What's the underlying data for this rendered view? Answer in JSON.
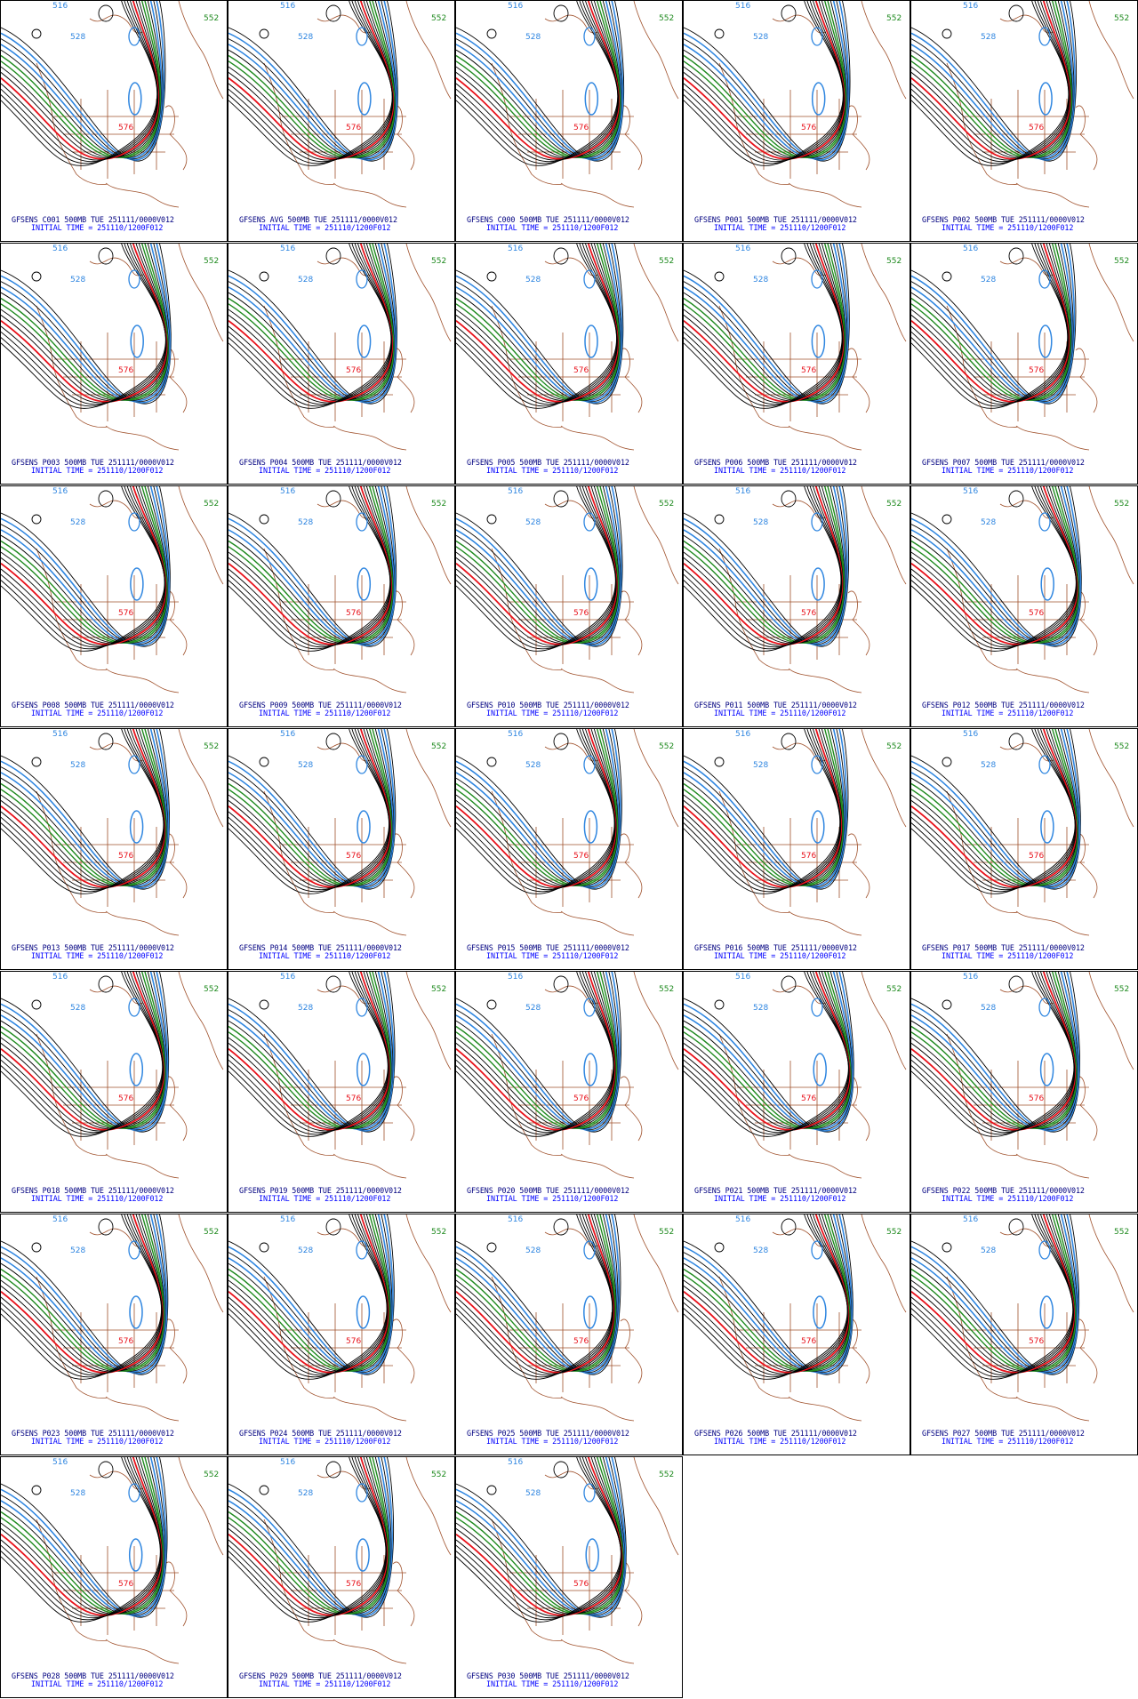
{
  "colors": {
    "contour": "#000000",
    "contour_552": "#1f8a1f",
    "contour_576": "#e8121b",
    "contour_516_528": "#2f86e0",
    "boundaries": "#a0522d",
    "caption_line1": "#000080",
    "caption_line2": "#0000ff"
  },
  "contour_labels": [
    "552",
    "516",
    "528",
    "576"
  ],
  "initial_time_line": "INITIAL TIME = 251110/1200F012",
  "panels": [
    {
      "caption": "GFSENS C001 500MB TUE 251111/0000V012"
    },
    {
      "caption": "GFSENS AVG 500MB TUE 251111/0000V012"
    },
    {
      "caption": "GFSENS C000 500MB TUE 251111/0000V012"
    },
    {
      "caption": "GFSENS P001 500MB TUE 251111/0000V012"
    },
    {
      "caption": "GFSENS P002 500MB TUE 251111/0000V012"
    },
    {
      "caption": "GFSENS P003 500MB TUE 251111/0000V012"
    },
    {
      "caption": "GFSENS P004 500MB TUE 251111/0000V012"
    },
    {
      "caption": "GFSENS P005 500MB TUE 251111/0000V012"
    },
    {
      "caption": "GFSENS P006 500MB TUE 251111/0000V012"
    },
    {
      "caption": "GFSENS P007 500MB TUE 251111/0000V012"
    },
    {
      "caption": "GFSENS P008 500MB TUE 251111/0000V012"
    },
    {
      "caption": "GFSENS P009 500MB TUE 251111/0000V012"
    },
    {
      "caption": "GFSENS P010 500MB TUE 251111/0000V012"
    },
    {
      "caption": "GFSENS P011 500MB TUE 251111/0000V012"
    },
    {
      "caption": "GFSENS P012 500MB TUE 251111/0000V012"
    },
    {
      "caption": "GFSENS P013 500MB TUE 251111/0000V012"
    },
    {
      "caption": "GFSENS P014 500MB TUE 251111/0000V012"
    },
    {
      "caption": "GFSENS P015 500MB TUE 251111/0000V012"
    },
    {
      "caption": "GFSENS P016 500MB TUE 251111/0000V012"
    },
    {
      "caption": "GFSENS P017 500MB TUE 251111/0000V012"
    },
    {
      "caption": "GFSENS P018 500MB TUE 251111/0000V012"
    },
    {
      "caption": "GFSENS P019 500MB TUE 251111/0000V012"
    },
    {
      "caption": "GFSENS P020 500MB TUE 251111/0000V012"
    },
    {
      "caption": "GFSENS P021 500MB TUE 251111/0000V012"
    },
    {
      "caption": "GFSENS P022 500MB TUE 251111/0000V012"
    },
    {
      "caption": "GFSENS P023 500MB TUE 251111/0000V012"
    },
    {
      "caption": "GFSENS P024 500MB TUE 251111/0000V012"
    },
    {
      "caption": "GFSENS P025 500MB TUE 251111/0000V012"
    },
    {
      "caption": "GFSENS P026 500MB TUE 251111/0000V012"
    },
    {
      "caption": "GFSENS P027 500MB TUE 251111/0000V012"
    },
    {
      "caption": "GFSENS P028 500MB TUE 251111/0000V012"
    },
    {
      "caption": "GFSENS P029 500MB TUE 251111/0000V012"
    },
    {
      "caption": "GFSENS P030 500MB TUE 251111/0000V012"
    }
  ]
}
